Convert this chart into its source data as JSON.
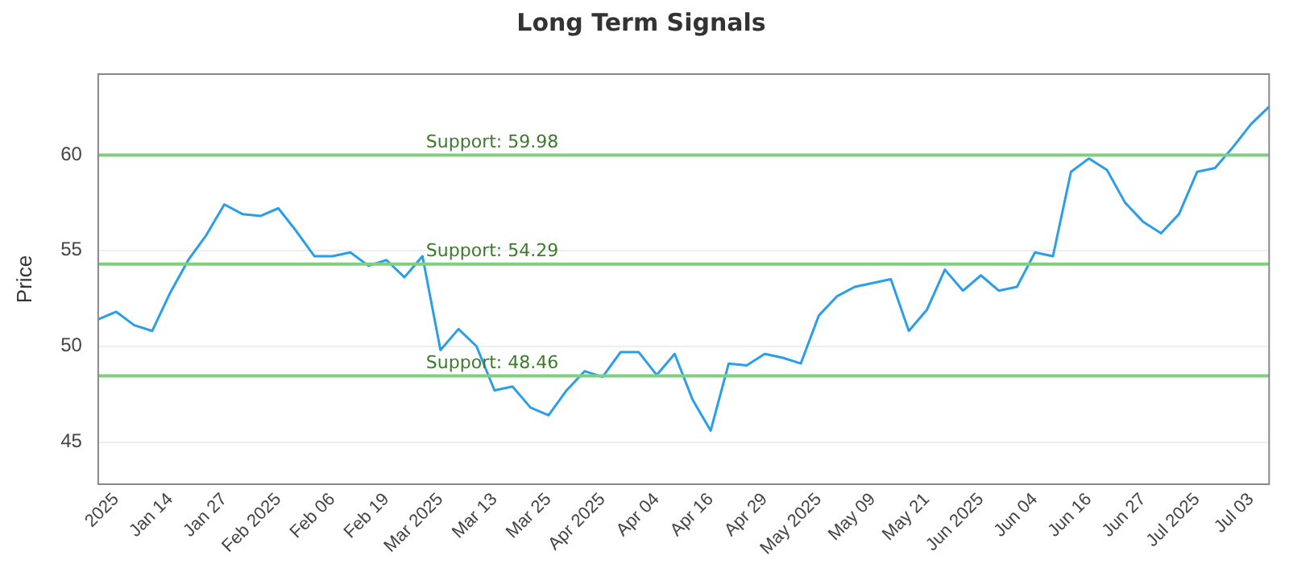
{
  "chart_data": {
    "type": "line",
    "title": "Long Term Signals",
    "ylabel": "Price",
    "categories": [
      null,
      "2025",
      null,
      null,
      "Jan 14",
      null,
      null,
      "Jan 27",
      null,
      null,
      "Feb 2025",
      null,
      null,
      "Feb 06",
      null,
      null,
      "Feb 19",
      null,
      null,
      "Mar 2025",
      null,
      null,
      "Mar 13",
      null,
      null,
      "Mar 25",
      null,
      null,
      "Apr 2025",
      null,
      null,
      "Apr 04",
      null,
      null,
      "Apr 16",
      null,
      null,
      "Apr 29",
      null,
      null,
      "May 2025",
      null,
      null,
      "May 09",
      null,
      null,
      "May 21",
      null,
      null,
      "Jun 2025",
      null,
      null,
      "Jun 04",
      null,
      null,
      "Jun 16",
      null,
      null,
      "Jun 27",
      null,
      null,
      "Jul 2025",
      null,
      null,
      "Jul 03",
      null
    ],
    "series": [
      {
        "color": "#2a9fe8",
        "values": [
          51.4,
          51.8,
          51.1,
          50.8,
          52.8,
          54.5,
          55.8,
          57.4,
          56.9,
          56.8,
          57.2,
          56.0,
          54.7,
          54.7,
          54.9,
          54.2,
          54.5,
          53.6,
          54.7,
          49.8,
          50.9,
          50.0,
          47.7,
          47.9,
          46.8,
          46.4,
          47.7,
          48.7,
          48.4,
          49.7,
          49.7,
          48.5,
          49.6,
          47.2,
          45.6,
          49.1,
          49.0,
          49.6,
          49.4,
          49.1,
          51.6,
          52.6,
          53.1,
          53.3,
          53.5,
          50.8,
          51.9,
          54.0,
          52.9,
          53.7,
          52.9,
          53.1,
          54.9,
          54.7,
          59.1,
          59.8,
          59.2,
          57.5,
          56.5,
          55.9,
          56.9,
          59.1,
          59.3,
          60.4,
          61.6,
          62.5
        ]
      }
    ],
    "ylim": [
      42.8,
      64.2
    ],
    "yticks": [
      45,
      50,
      55,
      60
    ],
    "grid": "y",
    "legend": false,
    "marker": "none",
    "line_style": "solid",
    "ref_lines": [
      {
        "axis": "y",
        "value": 59.98,
        "label": "Support: 59.98",
        "color": "#7fcf7f"
      },
      {
        "axis": "y",
        "value": 54.29,
        "label": "Support: 54.29",
        "color": "#7fcf7f"
      },
      {
        "axis": "y",
        "value": 48.46,
        "label": "Support: 48.46",
        "color": "#7fcf7f"
      }
    ]
  }
}
